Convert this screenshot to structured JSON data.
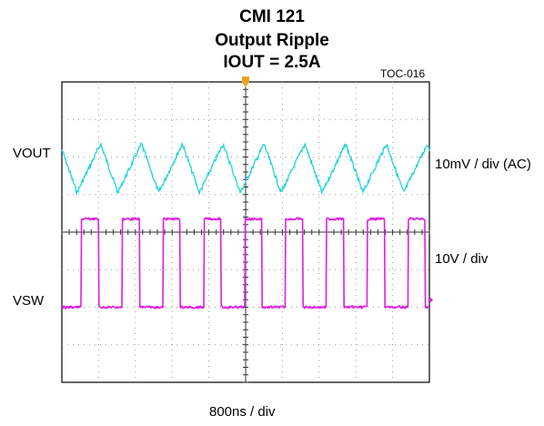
{
  "title": {
    "line1": "CMI  121",
    "line2": "Output Ripple",
    "line3": "IOUT = 2.5A"
  },
  "figure_id": "TOC-016",
  "colors": {
    "vout_trace": "#22d4dc",
    "vsw_trace": "#e020e0",
    "trigger_marker": "#f0a020",
    "grid": "#9a9a9a",
    "frame": "#000000"
  },
  "chart_data": {
    "type": "line",
    "title": "CMI 121 Output Ripple IOUT = 2.5A",
    "grid": true,
    "x_divisions": 10,
    "y_divisions": 8,
    "time_scale_label": "800ns / div",
    "channels": [
      {
        "name": "VOUT",
        "scale_label": "10mV / div (AC)",
        "waveform": "triangle-ripple",
        "cycles_on_screen": 9,
        "ripple_pkpk_div": 1.3,
        "ripple_pkpk_mV": 13,
        "center_div_from_top": 2.3
      },
      {
        "name": "VSW",
        "scale_label": "10V / div",
        "waveform": "square",
        "cycles_on_screen": 9,
        "duty_cycle": 0.42,
        "high_div_from_top": 3.65,
        "low_div_from_top": 6.0,
        "amplitude_V": 23.5
      }
    ]
  }
}
